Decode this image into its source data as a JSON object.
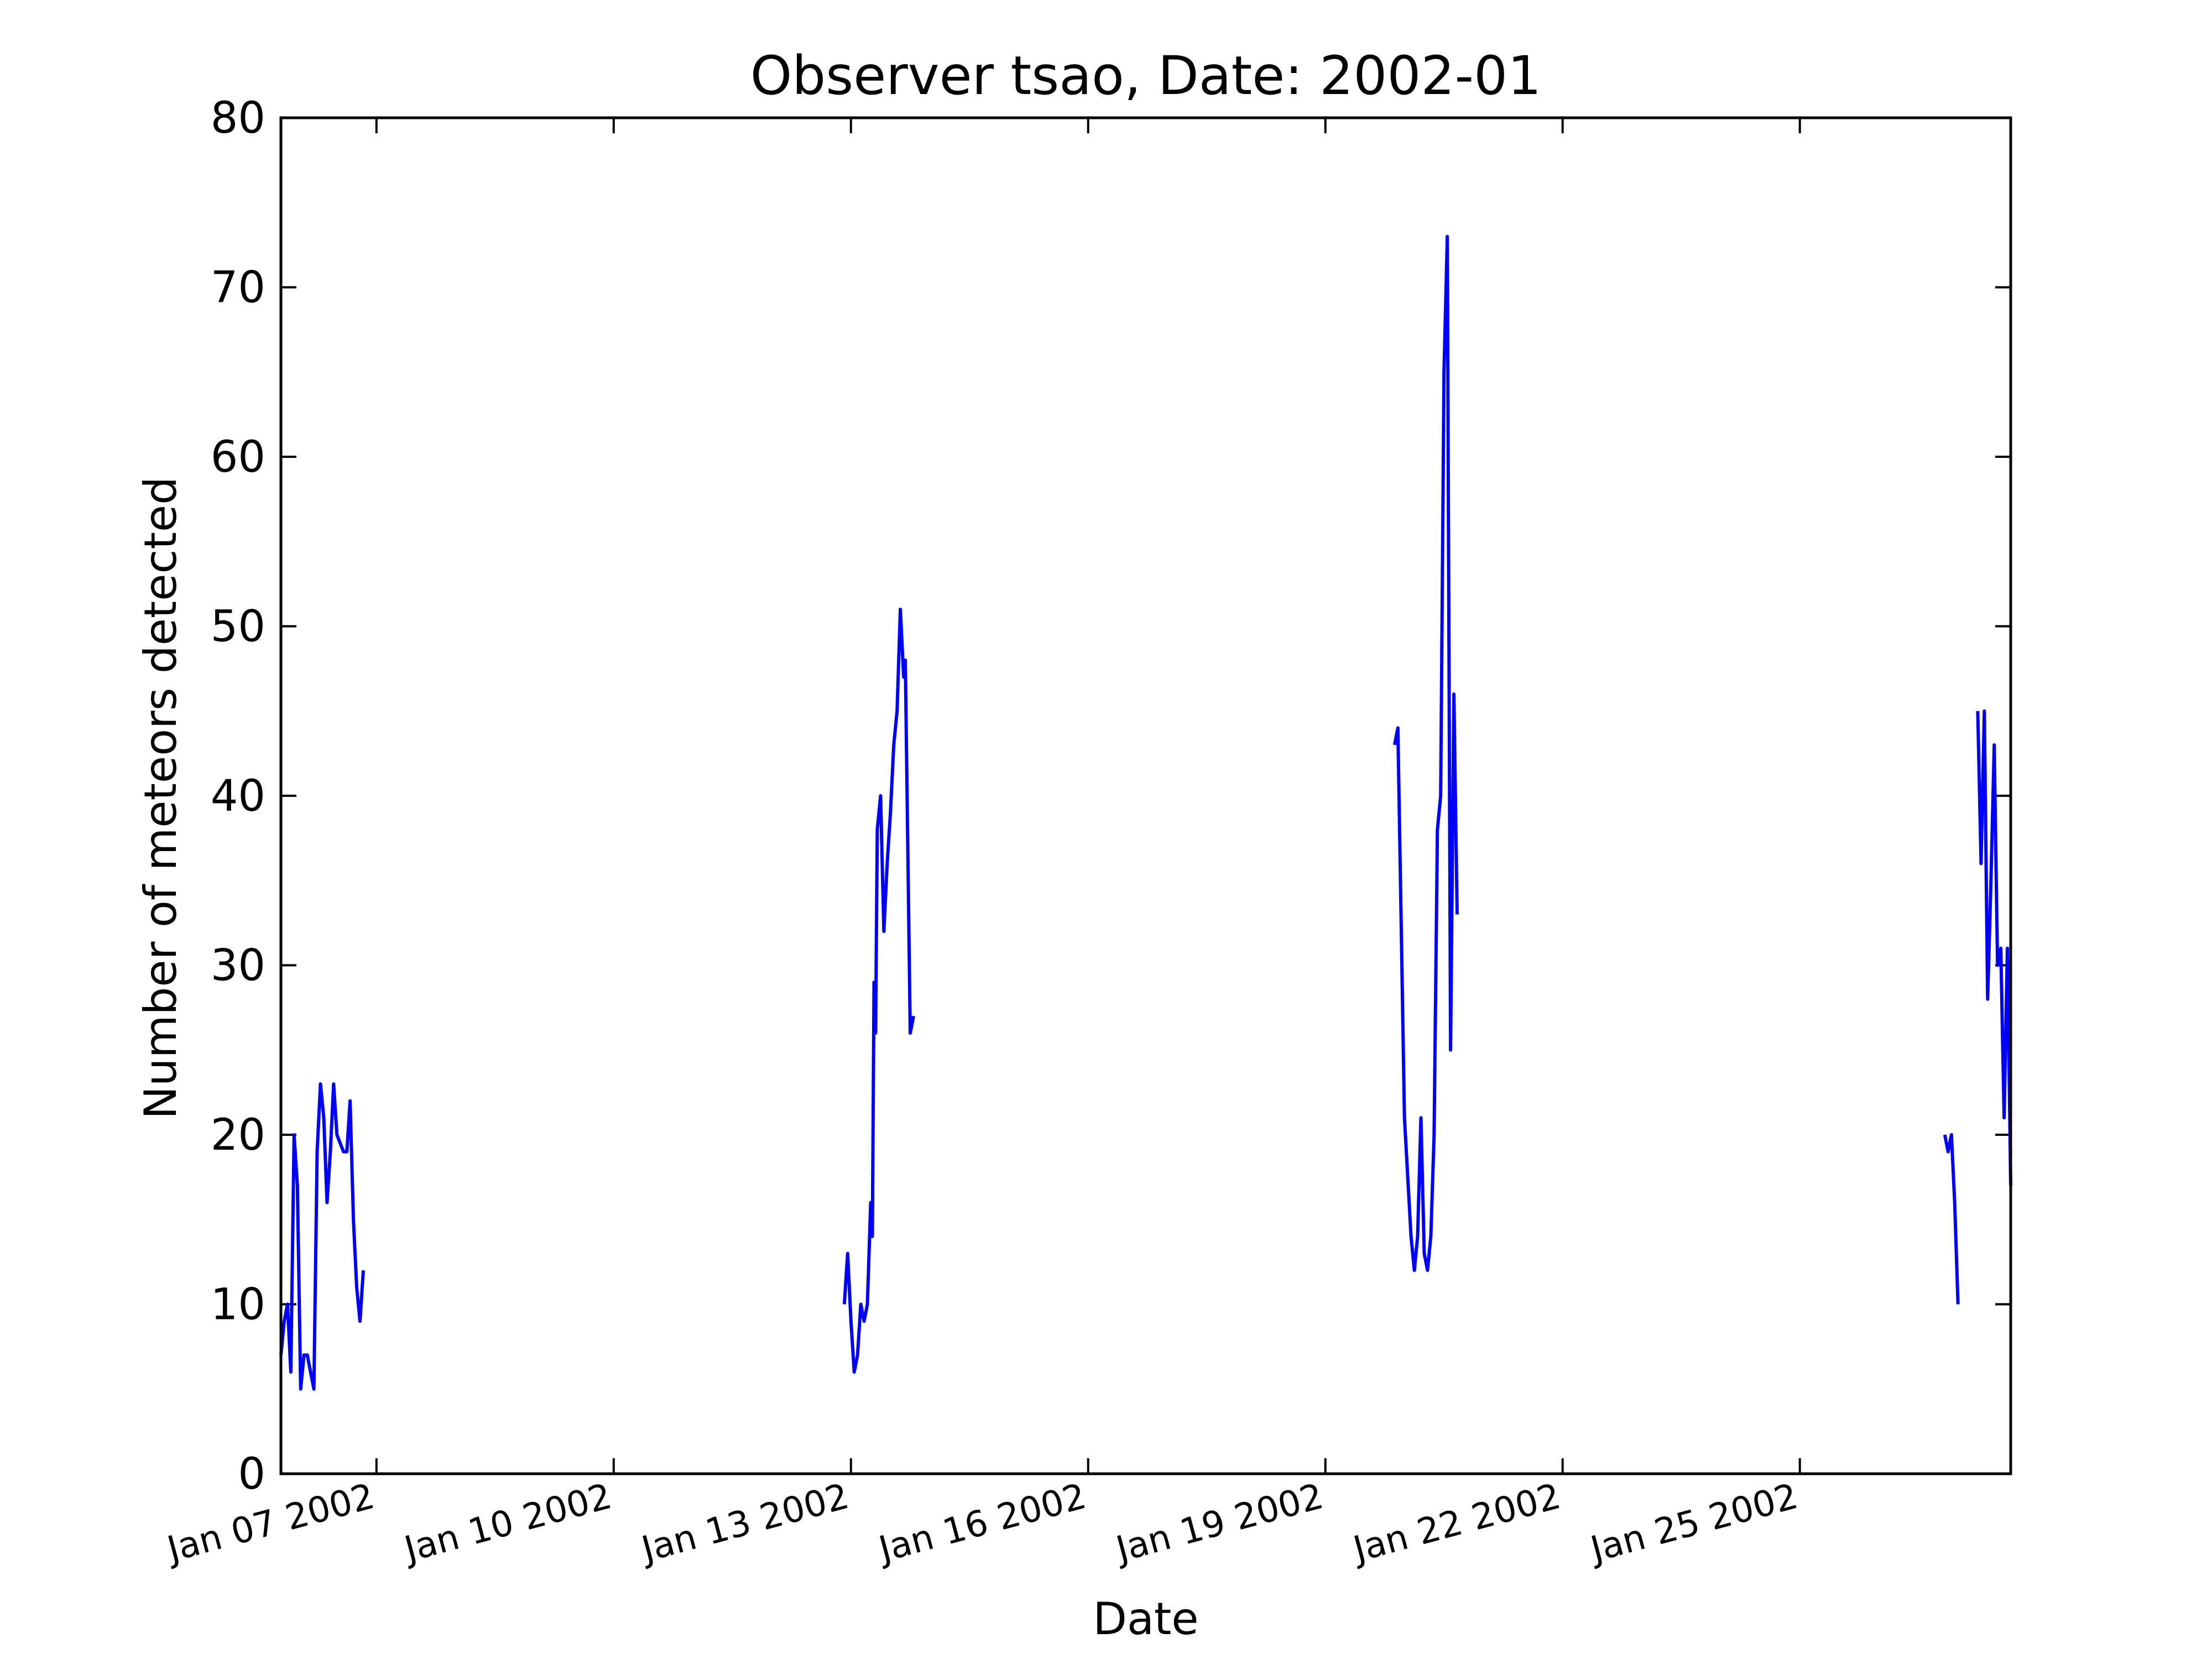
{
  "chart_data": {
    "type": "line",
    "title": "Observer tsao, Date: 2002-01",
    "xlabel": "Date",
    "ylabel": "Number of meteors detected",
    "xlim": [
      "2002-01-05T19:00",
      "2002-01-27T16:00"
    ],
    "ylim": [
      0,
      80
    ],
    "grid": false,
    "legend": "none",
    "line_color": "#0000ff",
    "x_ticks": [
      {
        "date": "2002-01-07",
        "label": "Jan 07 2002"
      },
      {
        "date": "2002-01-10",
        "label": "Jan 10 2002"
      },
      {
        "date": "2002-01-13",
        "label": "Jan 13 2002"
      },
      {
        "date": "2002-01-16",
        "label": "Jan 16 2002"
      },
      {
        "date": "2002-01-19",
        "label": "Jan 19 2002"
      },
      {
        "date": "2002-01-22",
        "label": "Jan 22 2002"
      },
      {
        "date": "2002-01-25",
        "label": "Jan 25 2002"
      }
    ],
    "y_ticks": [
      0,
      10,
      20,
      30,
      40,
      50,
      60,
      70,
      80
    ],
    "series": [
      {
        "segments": [
          [
            [
              "2002-01-05T19:00",
              7
            ],
            [
              "2002-01-05T20:00",
              9
            ],
            [
              "2002-01-05T21:00",
              10
            ],
            [
              "2002-01-05T22:00",
              6
            ],
            [
              "2002-01-05T23:00",
              20
            ],
            [
              "2002-01-06T00:00",
              17
            ],
            [
              "2002-01-06T01:00",
              5
            ],
            [
              "2002-01-06T02:00",
              7
            ],
            [
              "2002-01-06T03:00",
              7
            ],
            [
              "2002-01-06T04:00",
              6
            ],
            [
              "2002-01-06T05:00",
              5
            ],
            [
              "2002-01-06T06:00",
              19
            ],
            [
              "2002-01-06T07:00",
              23
            ],
            [
              "2002-01-06T08:00",
              21
            ],
            [
              "2002-01-06T09:00",
              16
            ],
            [
              "2002-01-06T10:00",
              19
            ],
            [
              "2002-01-06T11:00",
              23
            ],
            [
              "2002-01-06T12:00",
              20
            ],
            [
              "2002-01-06T13:00",
              19.5
            ],
            [
              "2002-01-06T14:00",
              19
            ],
            [
              "2002-01-06T15:00",
              19
            ],
            [
              "2002-01-06T16:00",
              22
            ],
            [
              "2002-01-06T17:00",
              15
            ],
            [
              "2002-01-06T18:00",
              11
            ],
            [
              "2002-01-06T19:00",
              9
            ],
            [
              "2002-01-06T20:00",
              12
            ]
          ],
          [
            [
              "2002-01-12T22:00",
              10
            ],
            [
              "2002-01-12T23:00",
              13
            ],
            [
              "2002-01-13T00:00",
              9
            ],
            [
              "2002-01-13T01:00",
              6
            ],
            [
              "2002-01-13T02:00",
              7
            ],
            [
              "2002-01-13T03:00",
              10
            ],
            [
              "2002-01-13T04:00",
              9
            ],
            [
              "2002-01-13T05:00",
              10
            ],
            [
              "2002-01-13T06:00",
              16
            ],
            [
              "2002-01-13T06:30",
              14
            ],
            [
              "2002-01-13T07:00",
              29
            ],
            [
              "2002-01-13T07:30",
              26
            ],
            [
              "2002-01-13T08:00",
              38
            ],
            [
              "2002-01-13T09:00",
              40
            ],
            [
              "2002-01-13T10:00",
              32
            ],
            [
              "2002-01-13T11:00",
              36
            ],
            [
              "2002-01-13T12:00",
              39
            ],
            [
              "2002-01-13T13:00",
              43
            ],
            [
              "2002-01-13T14:00",
              45
            ],
            [
              "2002-01-13T15:00",
              51
            ],
            [
              "2002-01-13T16:00",
              47
            ],
            [
              "2002-01-13T16:30",
              48
            ],
            [
              "2002-01-13T18:00",
              26
            ],
            [
              "2002-01-13T19:00",
              27
            ]
          ],
          [
            [
              "2002-01-19T21:00",
              43
            ],
            [
              "2002-01-19T22:00",
              44
            ],
            [
              "2002-01-20T00:00",
              21
            ],
            [
              "2002-01-20T02:00",
              14
            ],
            [
              "2002-01-20T03:00",
              12
            ],
            [
              "2002-01-20T04:00",
              14
            ],
            [
              "2002-01-20T05:00",
              21
            ],
            [
              "2002-01-20T06:00",
              13
            ],
            [
              "2002-01-20T07:00",
              12
            ],
            [
              "2002-01-20T08:00",
              14
            ],
            [
              "2002-01-20T09:00",
              20
            ],
            [
              "2002-01-20T10:00",
              38
            ],
            [
              "2002-01-20T11:00",
              40
            ],
            [
              "2002-01-20T12:00",
              65
            ],
            [
              "2002-01-20T13:00",
              73
            ],
            [
              "2002-01-20T14:00",
              25
            ],
            [
              "2002-01-20T15:00",
              46
            ],
            [
              "2002-01-20T16:00",
              33
            ]
          ],
          [
            [
              "2002-01-26T20:00",
              20
            ],
            [
              "2002-01-26T21:00",
              19
            ],
            [
              "2002-01-26T22:00",
              20
            ],
            [
              "2002-01-26T23:00",
              16
            ],
            [
              "2002-01-27T00:00",
              10
            ]
          ],
          [
            [
              "2002-01-27T06:00",
              45
            ],
            [
              "2002-01-27T07:00",
              36
            ],
            [
              "2002-01-27T08:00",
              45
            ],
            [
              "2002-01-27T09:00",
              28
            ],
            [
              "2002-01-27T10:00",
              35
            ],
            [
              "2002-01-27T11:00",
              43
            ],
            [
              "2002-01-27T12:00",
              30
            ],
            [
              "2002-01-27T13:00",
              31
            ],
            [
              "2002-01-27T14:00",
              21
            ],
            [
              "2002-01-27T15:00",
              31
            ],
            [
              "2002-01-27T16:00",
              17
            ]
          ]
        ]
      }
    ]
  }
}
